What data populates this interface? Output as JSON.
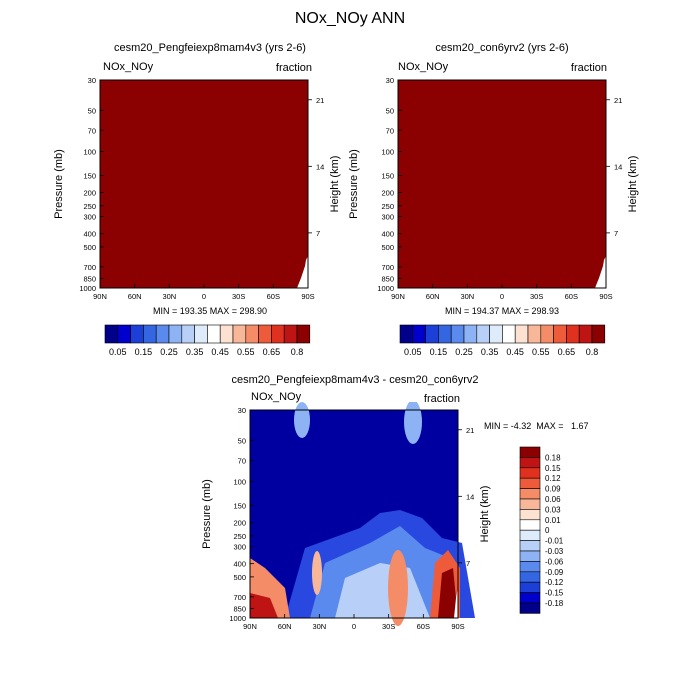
{
  "title": "NOx_NOy ANN",
  "colors": {
    "dark_red": "#8B0000",
    "navy": "#000080",
    "scale": [
      "#00008B",
      "#0000CD",
      "#1C3FD8",
      "#3366E0",
      "#5A8AEE",
      "#8DB3F5",
      "#B8D0F7",
      "#DDEBFB",
      "#FFFFFF",
      "#FDE2D2",
      "#F9B79A",
      "#F48C68",
      "#EE5B3A",
      "#E0301E",
      "#BF1414",
      "#8B0000"
    ]
  },
  "chart_data": [
    {
      "type": "heatmap",
      "title": "cesm20_Pengfeiexp8mam4v3 (yrs 2-6)",
      "left_label": "NOx_NOy",
      "right_label": "fraction",
      "xlabel": "",
      "ylabel": "Pressure (mb)",
      "y2label": "Height (km)",
      "x_ticks": [
        "90N",
        "60N",
        "30N",
        "0",
        "30S",
        "60S",
        "90S"
      ],
      "y_ticks": [
        "30",
        "50",
        "70",
        "100",
        "150",
        "200",
        "250",
        "300",
        "400",
        "500",
        "700",
        "850",
        "1000"
      ],
      "y2_ticks": [
        "21",
        "14",
        "7"
      ],
      "stats": "MIN = 193.35  MAX = 298.90",
      "colorbar_labels": [
        "0.05",
        "0.15",
        "0.25",
        "0.35",
        "0.45",
        "0.55",
        "0.65",
        "0.8"
      ]
    },
    {
      "type": "heatmap",
      "title": "cesm20_con6yrv2 (yrs 2-6)",
      "left_label": "NOx_NOy",
      "right_label": "fraction",
      "xlabel": "",
      "ylabel": "Pressure (mb)",
      "y2label": "Height (km)",
      "x_ticks": [
        "90N",
        "60N",
        "30N",
        "0",
        "30S",
        "60S",
        "90S"
      ],
      "y_ticks": [
        "30",
        "50",
        "70",
        "100",
        "150",
        "200",
        "250",
        "300",
        "400",
        "500",
        "700",
        "850",
        "1000"
      ],
      "y2_ticks": [
        "21",
        "14",
        "7"
      ],
      "stats": "MIN = 194.37  MAX = 298.93",
      "colorbar_labels": [
        "0.05",
        "0.15",
        "0.25",
        "0.35",
        "0.45",
        "0.55",
        "0.65",
        "0.8"
      ]
    },
    {
      "type": "heatmap",
      "title": "cesm20_Pengfeiexp8mam4v3 - cesm20_con6yrv2",
      "left_label": "NOx_NOy",
      "right_label": "fraction",
      "xlabel": "",
      "ylabel": "Pressure (mb)",
      "y2label": "Height (km)",
      "x_ticks": [
        "90N",
        "60N",
        "30N",
        "0",
        "30S",
        "60S",
        "90S"
      ],
      "y_ticks": [
        "30",
        "50",
        "70",
        "100",
        "150",
        "200",
        "250",
        "300",
        "400",
        "500",
        "700",
        "850",
        "1000"
      ],
      "y2_ticks": [
        "21",
        "14",
        "7"
      ],
      "stats": "MIN = -4.32  MAX =   1.67",
      "colorbar_labels": [
        "0.18",
        "0.15",
        "0.12",
        "0.09",
        "0.06",
        "0.03",
        "0.01",
        "0",
        "-0.01",
        "-0.03",
        "-0.06",
        "-0.09",
        "-0.12",
        "-0.15",
        "-0.18"
      ]
    }
  ]
}
